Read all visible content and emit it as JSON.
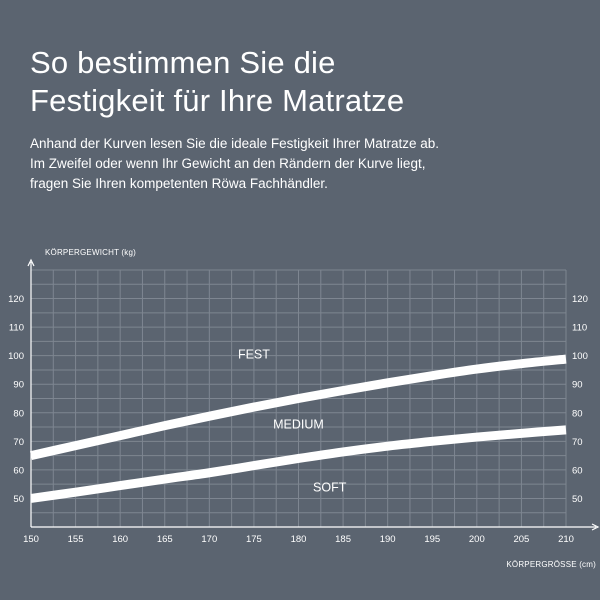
{
  "header": {
    "title_line1": "So bestimmen Sie die",
    "title_line2": "Festigkeit für Ihre Matratze",
    "intro_line1": "Anhand der Kurven lesen Sie die ideale Festigkeit Ihrer Matratze ab.",
    "intro_line2": "Im Zweifel oder wenn Ihr Gewicht an den Rändern der Kurve liegt,",
    "intro_line3": "fragen Sie Ihren kompetenten Röwa Fachhändler."
  },
  "chart_data": {
    "type": "line",
    "xlabel": "KÖRPERGRÖSSE (cm)",
    "ylabel": "KÖRPERGEWICHT (kg)",
    "xlim": [
      150,
      210
    ],
    "ylim": [
      40,
      130
    ],
    "xticks": [
      150,
      155,
      160,
      165,
      170,
      175,
      180,
      185,
      190,
      195,
      200,
      205,
      210
    ],
    "yticks": [
      50,
      60,
      70,
      80,
      90,
      100,
      110,
      120
    ],
    "grid": true,
    "legend": "none",
    "series": [
      {
        "x": [
          150,
          155,
          160,
          165,
          170,
          175,
          180,
          185,
          190,
          195,
          200,
          205,
          210
        ],
        "values": [
          65,
          68.5,
          72,
          75.5,
          78.8,
          82,
          85,
          87.8,
          90.5,
          93,
          95.3,
          97.2,
          98.8
        ]
      },
      {
        "x": [
          150,
          155,
          160,
          165,
          170,
          175,
          180,
          185,
          190,
          195,
          200,
          205,
          210
        ],
        "values": [
          50,
          52.2,
          54.5,
          56.8,
          59,
          61.5,
          64,
          66.3,
          68.3,
          70,
          71.5,
          72.8,
          74
        ]
      }
    ],
    "zone_labels": [
      {
        "text": "FEST",
        "x": 175,
        "y": 99
      },
      {
        "text": "MEDIUM",
        "x": 180,
        "y": 74.5
      },
      {
        "text": "SOFT",
        "x": 183.5,
        "y": 52.5
      }
    ]
  }
}
